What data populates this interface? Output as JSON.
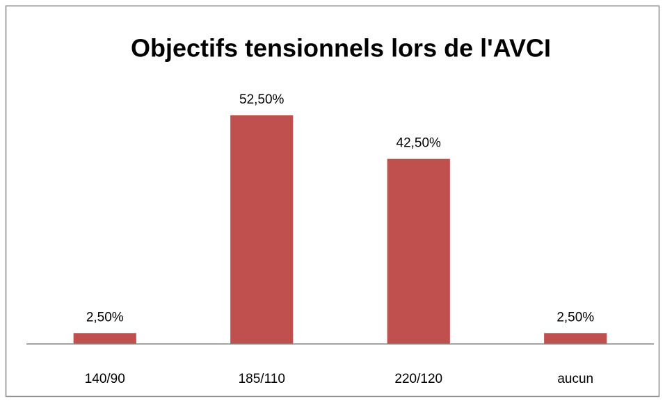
{
  "chart_data": {
    "type": "bar",
    "title": "Objectifs tensionnels lors de l'AVCI",
    "categories": [
      "140/90",
      "185/110",
      "220/120",
      "aucun"
    ],
    "values": [
      2.5,
      52.5,
      42.5,
      2.5
    ],
    "value_labels": [
      "2,50%",
      "52,50%",
      "42,50%",
      "2,50%"
    ],
    "color": "#c0504d",
    "ylim": [
      0,
      60
    ]
  }
}
